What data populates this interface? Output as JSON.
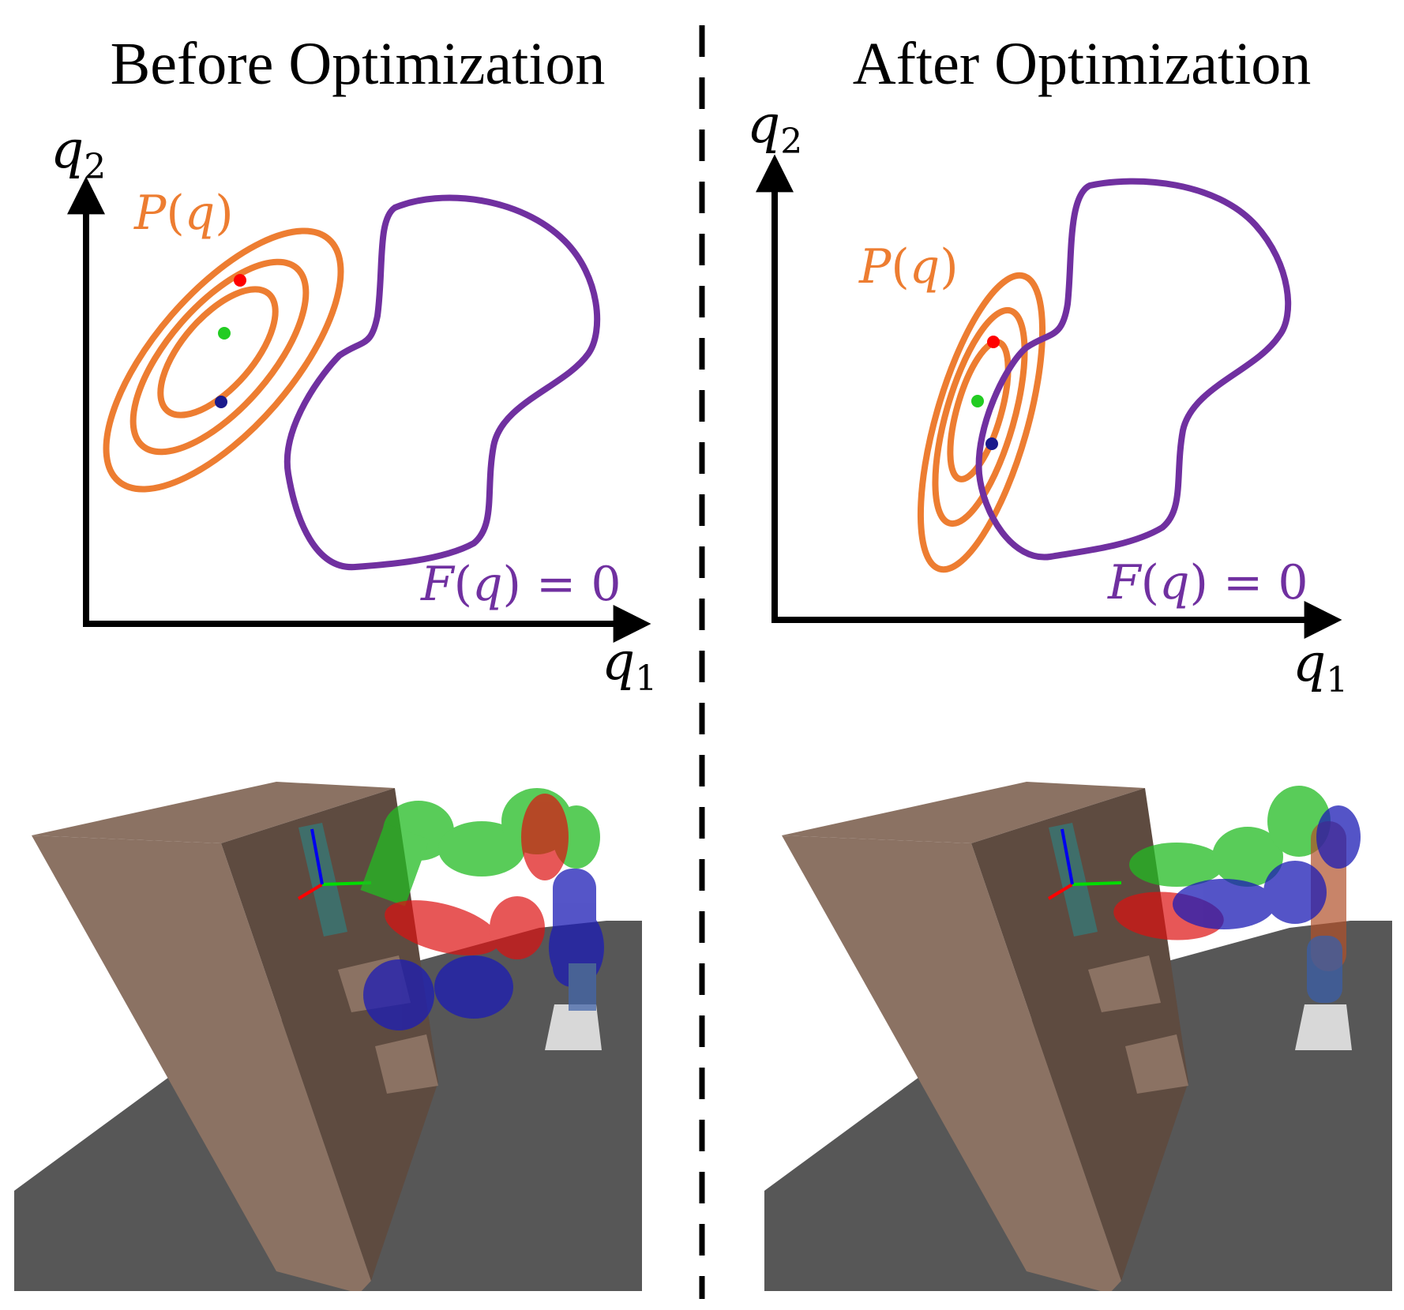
{
  "figure": {
    "left_panel": {
      "title": "Before Optimization",
      "diagram": {
        "x_axis": {
          "symbol": "q",
          "subscript": "1"
        },
        "y_axis": {
          "symbol": "q",
          "subscript": "2"
        },
        "density_label": {
          "func": "P",
          "open": "(",
          "arg": "q",
          "close": ")"
        },
        "manifold_label": {
          "func": "F",
          "open": "(",
          "arg": "q",
          "close": ")",
          "eq": " = 0"
        }
      }
    },
    "right_panel": {
      "title": "After Optimization",
      "diagram": {
        "x_axis": {
          "symbol": "q",
          "subscript": "1"
        },
        "y_axis": {
          "symbol": "q",
          "subscript": "2"
        },
        "density_label": {
          "func": "P",
          "open": "(",
          "arg": "q",
          "close": ")"
        },
        "manifold_label": {
          "func": "F",
          "open": "(",
          "arg": "q",
          "close": ")",
          "eq": " = 0"
        }
      }
    },
    "colors": {
      "density": "#ED7D31",
      "manifold": "#7030A0",
      "red_point": "#FF0000",
      "green_point": "#22CC22",
      "blue_point": "#1A1A8C",
      "shelf_front": "#8B7263",
      "shelf_shadow": "#5E4B40",
      "floor": "#575757",
      "divider": "#000000"
    }
  }
}
